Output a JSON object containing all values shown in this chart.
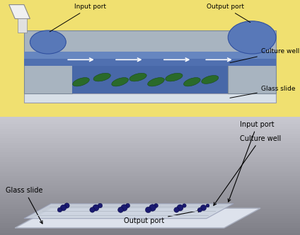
{
  "top_panel": {
    "bg_color": "#f0e070",
    "labels": {
      "input_port": "Input port",
      "output_port": "Output port",
      "culture_well": "Culture well",
      "glass_slide": "Glass slide"
    },
    "chip_color": "#a8b4c0",
    "channel_blue": "#5070b0",
    "channel_light": "#7090c8",
    "culture_blue": "#4060a8",
    "glass_color": "#d8e0e8",
    "glass_border": "#888899",
    "leaf_color": "#2a6a2a",
    "port_color": "#5878b8",
    "funnel_color": "#e8e8e8"
  },
  "bottom_panel": {
    "bg_color_top": "#c8ccd4",
    "bg_color_bot": "#888898",
    "labels": {
      "input_port": "Input port",
      "culture_well": "Culture well",
      "glass_slide": "Glass slide",
      "output_port": "Output port"
    },
    "dot_color": "#1a1a70",
    "glass_top": "#eaeef4",
    "glass_mid": "#d8dce8",
    "glass_bot": "#c0c4cc"
  },
  "figsize": [
    4.24,
    3.32
  ],
  "dpi": 100
}
